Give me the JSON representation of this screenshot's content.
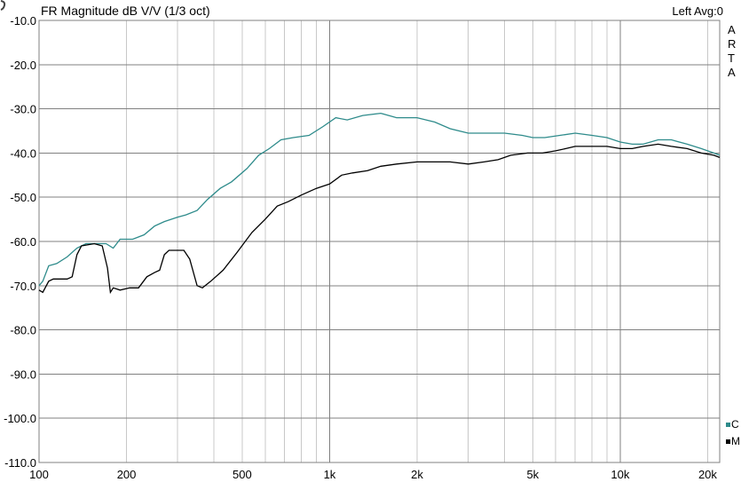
{
  "header": {
    "title": "FR Magnitude dB V/V (1/3 oct)",
    "right_info": "Left  Avg:0",
    "watermark_letters": [
      "A",
      "R",
      "T",
      "A"
    ]
  },
  "legend": [
    {
      "label": "C",
      "color": "#2e8b8b"
    },
    {
      "label": "M",
      "color": "#000000"
    }
  ],
  "chart_data": {
    "type": "line",
    "title": "FR Magnitude dB V/V (1/3 oct)",
    "xlabel": "",
    "ylabel": "",
    "x_scale": "log",
    "xlim": [
      100,
      22000
    ],
    "ylim": [
      -110,
      -10
    ],
    "grid": true,
    "legend_position": "right",
    "x_ticks": [
      {
        "value": 100,
        "label": "100"
      },
      {
        "value": 200,
        "label": "200"
      },
      {
        "value": 500,
        "label": "500"
      },
      {
        "value": 1000,
        "label": "1k"
      },
      {
        "value": 2000,
        "label": "2k"
      },
      {
        "value": 5000,
        "label": "5k"
      },
      {
        "value": 10000,
        "label": "10k"
      },
      {
        "value": 20000,
        "label": "20k"
      }
    ],
    "y_ticks": [
      {
        "value": -10,
        "label": "-10.0"
      },
      {
        "value": -20,
        "label": "-20.0"
      },
      {
        "value": -30,
        "label": "-30.0"
      },
      {
        "value": -40,
        "label": "-40.0"
      },
      {
        "value": -50,
        "label": "-50.0"
      },
      {
        "value": -60,
        "label": "-60.0"
      },
      {
        "value": -70,
        "label": "-70.0"
      },
      {
        "value": -80,
        "label": "-80.0"
      },
      {
        "value": -90,
        "label": "-90.0"
      },
      {
        "value": -100,
        "label": "-100.0"
      },
      {
        "value": -110,
        "label": "-110.0"
      }
    ],
    "series": [
      {
        "color": "#2e8b8b",
        "points": [
          [
            100,
            -70
          ],
          [
            103,
            -69
          ],
          [
            108,
            -65.5
          ],
          [
            115,
            -65
          ],
          [
            125,
            -63.5
          ],
          [
            135,
            -61.5
          ],
          [
            145,
            -60.5
          ],
          [
            160,
            -60.5
          ],
          [
            170,
            -60.5
          ],
          [
            180,
            -61.5
          ],
          [
            190,
            -59.5
          ],
          [
            210,
            -59.5
          ],
          [
            230,
            -58.5
          ],
          [
            250,
            -56.5
          ],
          [
            270,
            -55.5
          ],
          [
            300,
            -54.5
          ],
          [
            320,
            -54
          ],
          [
            350,
            -53
          ],
          [
            380,
            -50.5
          ],
          [
            420,
            -48
          ],
          [
            460,
            -46.5
          ],
          [
            520,
            -43.5
          ],
          [
            570,
            -40.5
          ],
          [
            620,
            -39
          ],
          [
            680,
            -37
          ],
          [
            750,
            -36.5
          ],
          [
            850,
            -36
          ],
          [
            950,
            -34
          ],
          [
            1050,
            -32
          ],
          [
            1150,
            -32.5
          ],
          [
            1300,
            -31.5
          ],
          [
            1500,
            -31
          ],
          [
            1700,
            -32
          ],
          [
            2000,
            -32
          ],
          [
            2300,
            -33
          ],
          [
            2600,
            -34.5
          ],
          [
            3000,
            -35.5
          ],
          [
            3500,
            -35.5
          ],
          [
            4000,
            -35.5
          ],
          [
            4600,
            -36
          ],
          [
            5000,
            -36.5
          ],
          [
            5500,
            -36.5
          ],
          [
            6200,
            -36
          ],
          [
            7000,
            -35.5
          ],
          [
            8000,
            -36
          ],
          [
            9000,
            -36.5
          ],
          [
            10000,
            -37.5
          ],
          [
            11000,
            -38
          ],
          [
            12000,
            -38
          ],
          [
            13500,
            -37
          ],
          [
            15000,
            -37
          ],
          [
            17000,
            -38
          ],
          [
            19000,
            -39
          ],
          [
            21000,
            -40
          ],
          [
            22000,
            -40.5
          ]
        ]
      },
      {
        "color": "#000000",
        "points": [
          [
            100,
            -71
          ],
          [
            103,
            -71.5
          ],
          [
            108,
            -69
          ],
          [
            112,
            -68.5
          ],
          [
            118,
            -68.5
          ],
          [
            125,
            -68.5
          ],
          [
            130,
            -68
          ],
          [
            135,
            -63
          ],
          [
            140,
            -61
          ],
          [
            155,
            -60.5
          ],
          [
            165,
            -61
          ],
          [
            172,
            -66
          ],
          [
            176,
            -71.5
          ],
          [
            180,
            -70.5
          ],
          [
            190,
            -71
          ],
          [
            205,
            -70.5
          ],
          [
            220,
            -70.5
          ],
          [
            235,
            -68
          ],
          [
            250,
            -67
          ],
          [
            260,
            -66.5
          ],
          [
            270,
            -63
          ],
          [
            280,
            -62
          ],
          [
            300,
            -62
          ],
          [
            315,
            -62
          ],
          [
            330,
            -64
          ],
          [
            350,
            -70
          ],
          [
            365,
            -70.5
          ],
          [
            390,
            -69
          ],
          [
            430,
            -66.5
          ],
          [
            480,
            -62.5
          ],
          [
            540,
            -58
          ],
          [
            600,
            -55
          ],
          [
            660,
            -52
          ],
          [
            720,
            -51
          ],
          [
            800,
            -49.5
          ],
          [
            900,
            -48
          ],
          [
            1000,
            -47
          ],
          [
            1100,
            -45
          ],
          [
            1200,
            -44.5
          ],
          [
            1350,
            -44
          ],
          [
            1500,
            -43
          ],
          [
            1700,
            -42.5
          ],
          [
            2000,
            -42
          ],
          [
            2300,
            -42
          ],
          [
            2600,
            -42
          ],
          [
            3000,
            -42.5
          ],
          [
            3400,
            -42
          ],
          [
            3800,
            -41.5
          ],
          [
            4200,
            -40.5
          ],
          [
            4800,
            -40
          ],
          [
            5400,
            -40
          ],
          [
            6000,
            -39.5
          ],
          [
            6500,
            -39
          ],
          [
            7000,
            -38.5
          ],
          [
            8000,
            -38.5
          ],
          [
            9000,
            -38.5
          ],
          [
            10000,
            -39
          ],
          [
            11000,
            -39
          ],
          [
            12000,
            -38.5
          ],
          [
            13500,
            -38
          ],
          [
            15000,
            -38.5
          ],
          [
            17000,
            -39
          ],
          [
            19000,
            -40
          ],
          [
            21000,
            -40.5
          ],
          [
            22000,
            -41
          ]
        ]
      }
    ]
  }
}
